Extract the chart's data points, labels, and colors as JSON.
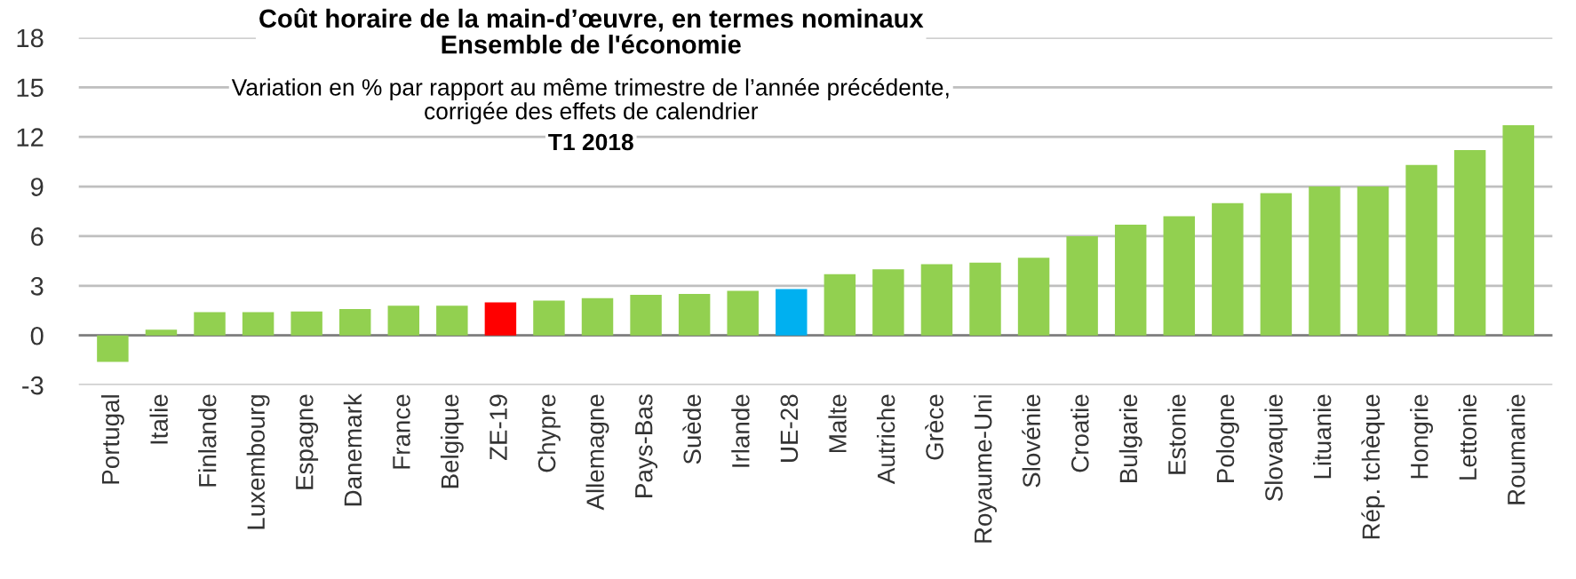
{
  "chart_data": {
    "type": "bar",
    "title": "Coût horaire de la main-d’œuvre, en termes nominaux\nEnsemble de l'économie",
    "subtitle": "Variation en % par rapport au même trimestre de l’année précédente,\ncorrigée des effets de calendrier",
    "annotations": [
      "T1 2018"
    ],
    "categories": [
      "Portugal",
      "Italie",
      "Finlande",
      "Luxembourg",
      "Espagne",
      "Danemark",
      "France",
      "Belgique",
      "ZE-19",
      "Chypre",
      "Allemagne",
      "Pays-Bas",
      "Suède",
      "Irlande",
      "UE-28",
      "Malte",
      "Autriche",
      "Grèce",
      "Royaume-Uni",
      "Slovénie",
      "Croatie",
      "Bulgarie",
      "Estonie",
      "Pologne",
      "Slovaquie",
      "Lituanie",
      "Rép. tchèque",
      "Hongrie",
      "Lettonie",
      "Roumanie"
    ],
    "values": [
      -1.6,
      0.35,
      1.4,
      1.4,
      1.45,
      1.6,
      1.8,
      1.8,
      2.0,
      2.1,
      2.25,
      2.45,
      2.5,
      2.7,
      2.8,
      3.7,
      4.0,
      4.3,
      4.4,
      4.7,
      6.0,
      6.7,
      7.2,
      8.0,
      8.6,
      9.0,
      9.0,
      10.3,
      11.2,
      12.7
    ],
    "colors": [
      "#92d050",
      "#92d050",
      "#92d050",
      "#92d050",
      "#92d050",
      "#92d050",
      "#92d050",
      "#92d050",
      "#ff0000",
      "#92d050",
      "#92d050",
      "#92d050",
      "#92d050",
      "#92d050",
      "#00b0f0",
      "#92d050",
      "#92d050",
      "#92d050",
      "#92d050",
      "#92d050",
      "#92d050",
      "#92d050",
      "#92d050",
      "#92d050",
      "#92d050",
      "#92d050",
      "#92d050",
      "#92d050",
      "#92d050",
      "#92d050"
    ],
    "ylim": [
      -3,
      18
    ],
    "yticks": [
      -3,
      0,
      3,
      6,
      9,
      12,
      15,
      18
    ],
    "grid": "y"
  }
}
